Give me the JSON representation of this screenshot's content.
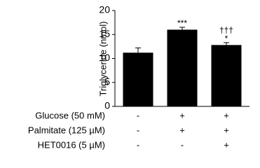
{
  "chart_data": {
    "type": "bar",
    "ylabel": "Triglyceride (nmol)",
    "categories": [
      null,
      null,
      null
    ],
    "values": [
      11.2,
      16.0,
      12.8
    ],
    "errors": [
      1.0,
      0.5,
      0.5
    ],
    "color": "#000000",
    "significance": [
      [],
      [
        "***"
      ],
      [
        "*",
        "†††"
      ]
    ],
    "ylim": [
      0,
      20
    ],
    "yticks": [
      0,
      5,
      10,
      15,
      20
    ],
    "grid": false,
    "conditions": [
      {
        "name": "Glucose (50 mM)",
        "values": [
          "-",
          "+",
          "+"
        ]
      },
      {
        "name": "Palmitate (125 µM)",
        "values": [
          "-",
          "+",
          "+"
        ]
      },
      {
        "name": "HET0016 (5 µM)",
        "values": [
          "-",
          "-",
          "+"
        ]
      }
    ]
  }
}
